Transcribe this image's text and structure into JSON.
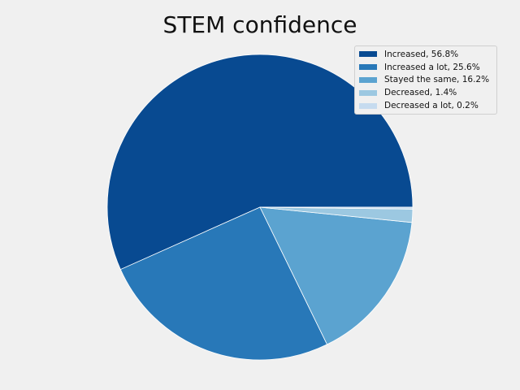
{
  "chart_data": {
    "type": "pie",
    "title": "STEM confidence",
    "legend_position": "top-right",
    "slices": [
      {
        "label": "Increased, 56.8%",
        "value": 56.8,
        "color": "#084a91"
      },
      {
        "label": "Increased a lot, 25.6%",
        "value": 25.6,
        "color": "#2878b8"
      },
      {
        "label": "Stayed the same, 16.2%",
        "value": 16.2,
        "color": "#5ba3d0"
      },
      {
        "label": "Decreased, 1.4%",
        "value": 1.4,
        "color": "#9cc8e1"
      },
      {
        "label": "Decreased a lot, 0.2%",
        "value": 0.2,
        "color": "#c6dbef"
      }
    ]
  }
}
